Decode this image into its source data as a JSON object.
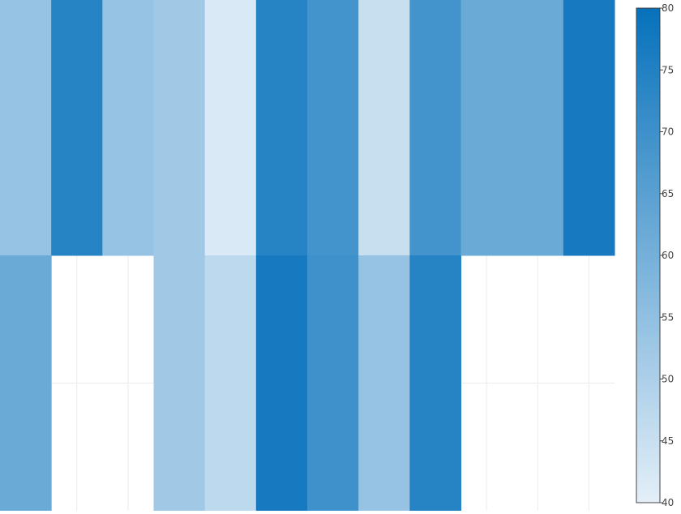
{
  "chart_data": {
    "type": "heatmap",
    "title": "",
    "xlabel": "",
    "ylabel": "",
    "columns": 12,
    "rows": 2,
    "grid": true,
    "colorscale": {
      "min": 40,
      "max": 80,
      "low_color": "#e4eff8",
      "high_color": "#0671bb",
      "ticks": [
        40,
        45,
        50,
        55,
        60,
        65,
        70,
        75,
        80
      ]
    },
    "z": [
      [
        54,
        74,
        54,
        52,
        42,
        74,
        69,
        45,
        69,
        62,
        62,
        77
      ],
      [
        62,
        null,
        null,
        52,
        47,
        77,
        70,
        54,
        74,
        null,
        null,
        null
      ]
    ]
  }
}
